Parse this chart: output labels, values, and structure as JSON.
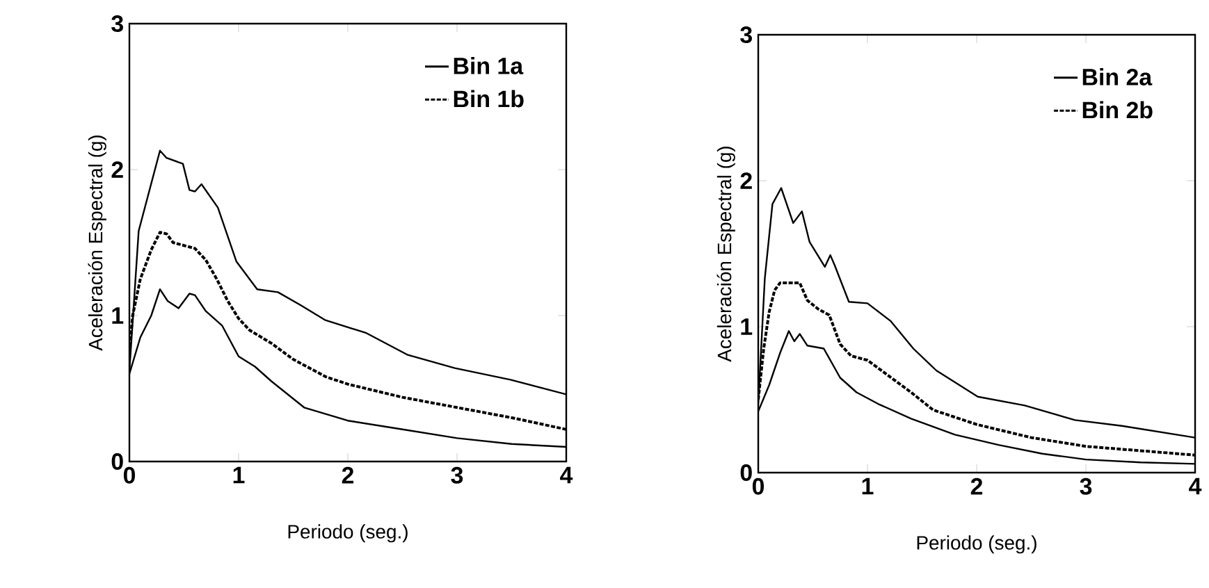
{
  "chart_data": [
    {
      "type": "line",
      "xlabel": "Periodo (seg.)",
      "ylabel": "Aceleración Espectral (g)",
      "xlim": [
        0,
        4
      ],
      "ylim": [
        0,
        3
      ],
      "xticks": [
        0,
        1,
        2,
        3,
        4
      ],
      "yticks": [
        0,
        1,
        2,
        3
      ],
      "legend": "top right",
      "marker": "none",
      "grid": false,
      "series": [
        {
          "name": "Bin 1a",
          "color": "#000000",
          "line_style": "solid",
          "x": [
            0,
            0.085,
            0.28,
            0.34,
            0.49,
            0.55,
            0.6,
            0.66,
            0.81,
            0.98,
            1.17,
            1.36,
            1.57,
            1.79,
            2.17,
            2.55,
            2.98,
            3.49,
            4.0
          ],
          "values": [
            0.62,
            1.58,
            2.13,
            2.08,
            2.04,
            1.86,
            1.85,
            1.9,
            1.74,
            1.37,
            1.18,
            1.16,
            1.07,
            0.97,
            0.88,
            0.73,
            0.64,
            0.56,
            0.46
          ]
        },
        {
          "name": "Bin 1b",
          "color": "#000000",
          "line_style": "dashed",
          "x": [
            0,
            0.03,
            0.1,
            0.2,
            0.28,
            0.34,
            0.4,
            0.5,
            0.6,
            0.7,
            0.8,
            0.9,
            1.0,
            1.1,
            1.3,
            1.5,
            1.8,
            2.0,
            2.5,
            3.0,
            3.5,
            4.0
          ],
          "values": [
            0.75,
            1.0,
            1.25,
            1.45,
            1.57,
            1.56,
            1.5,
            1.48,
            1.46,
            1.38,
            1.25,
            1.1,
            0.98,
            0.9,
            0.81,
            0.7,
            0.58,
            0.53,
            0.44,
            0.37,
            0.3,
            0.22
          ]
        },
        {
          "color": "#000000",
          "line_style": "solid",
          "x": [
            0,
            0.1,
            0.2,
            0.28,
            0.35,
            0.45,
            0.55,
            0.6,
            0.7,
            0.85,
            1.0,
            1.15,
            1.3,
            1.6,
            2.0,
            2.5,
            3.0,
            3.5,
            4.0
          ],
          "values": [
            0.6,
            0.85,
            1.0,
            1.18,
            1.1,
            1.05,
            1.15,
            1.14,
            1.03,
            0.93,
            0.72,
            0.65,
            0.55,
            0.37,
            0.28,
            0.22,
            0.16,
            0.12,
            0.1
          ]
        }
      ]
    },
    {
      "type": "line",
      "xlabel": "Periodo (seg.)",
      "ylabel": "Aceleración Espectral (g)",
      "xlim": [
        0,
        4
      ],
      "ylim": [
        0,
        3
      ],
      "xticks": [
        0,
        1,
        2,
        3,
        4
      ],
      "yticks": [
        0,
        1,
        2,
        3
      ],
      "legend": "top right",
      "marker": "none",
      "grid": false,
      "series": [
        {
          "name": "Bin 2a",
          "color": "#000000",
          "line_style": "solid",
          "x": [
            0,
            0.06,
            0.13,
            0.21,
            0.32,
            0.4,
            0.47,
            0.61,
            0.66,
            0.7,
            0.83,
            1.0,
            1.21,
            1.42,
            1.63,
            2.01,
            2.44,
            2.9,
            3.33,
            4.0
          ],
          "values": [
            0.47,
            1.33,
            1.84,
            1.95,
            1.71,
            1.79,
            1.58,
            1.41,
            1.49,
            1.42,
            1.17,
            1.16,
            1.04,
            0.85,
            0.7,
            0.52,
            0.46,
            0.36,
            0.32,
            0.24
          ]
        },
        {
          "name": "Bin 2b",
          "color": "#000000",
          "line_style": "dashed",
          "x": [
            0,
            0.05,
            0.1,
            0.15,
            0.2,
            0.3,
            0.38,
            0.45,
            0.55,
            0.65,
            0.75,
            0.85,
            1.0,
            1.2,
            1.4,
            1.6,
            2.0,
            2.5,
            3.0,
            3.5,
            4.0
          ],
          "values": [
            0.5,
            0.85,
            1.1,
            1.25,
            1.3,
            1.3,
            1.3,
            1.18,
            1.12,
            1.08,
            0.88,
            0.8,
            0.77,
            0.66,
            0.55,
            0.43,
            0.33,
            0.24,
            0.18,
            0.15,
            0.12
          ]
        },
        {
          "color": "#000000",
          "line_style": "solid",
          "x": [
            0,
            0.1,
            0.2,
            0.28,
            0.33,
            0.38,
            0.45,
            0.6,
            0.75,
            0.9,
            1.1,
            1.4,
            1.8,
            2.2,
            2.6,
            3.0,
            3.5,
            4.0
          ],
          "values": [
            0.42,
            0.6,
            0.82,
            0.97,
            0.9,
            0.95,
            0.87,
            0.85,
            0.65,
            0.55,
            0.47,
            0.37,
            0.26,
            0.19,
            0.13,
            0.09,
            0.07,
            0.06
          ]
        }
      ]
    }
  ]
}
